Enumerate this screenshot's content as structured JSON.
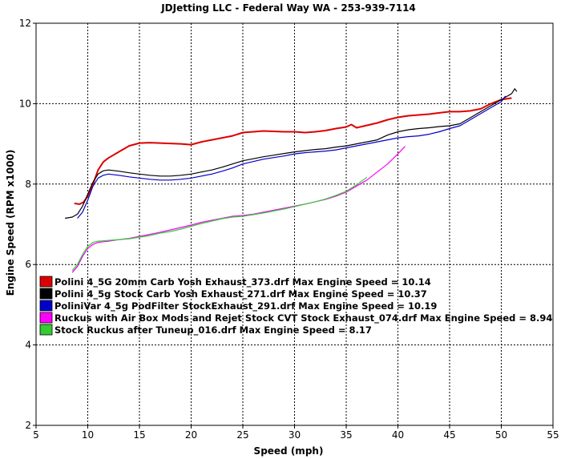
{
  "chart_data": {
    "type": "line",
    "title": "JDJetting LLC  - Federal Way WA - 253-939-7114",
    "xlabel": "Speed (mph)",
    "ylabel": "Engine Speed (RPM x1000)",
    "xlim": [
      5,
      55
    ],
    "ylim": [
      2,
      12
    ],
    "x_ticks": [
      "5",
      "10",
      "15",
      "20",
      "25",
      "30",
      "35",
      "40",
      "45",
      "50",
      "55"
    ],
    "y_ticks": [
      "2",
      "4",
      "6",
      "8",
      "10",
      "12"
    ],
    "grid": true,
    "legend_position": "lower-left",
    "series": [
      {
        "name": "Polini 4_5G 20mm Carb Yosh Exhaust_373.drf Max Engine Speed = 10.14",
        "color": "#dd0000",
        "x": [
          8.7,
          9.2,
          9.6,
          10.0,
          10.5,
          11.0,
          11.5,
          12.0,
          13.0,
          14.0,
          15.0,
          16.0,
          17.0,
          18.0,
          19.0,
          20.0,
          21.0,
          22.0,
          23.0,
          24.0,
          25.0,
          26.0,
          27.0,
          28.0,
          29.0,
          30.0,
          31.0,
          32.0,
          33.0,
          34.0,
          35.0,
          35.5,
          36.0,
          37.0,
          38.0,
          39.0,
          40.0,
          41.0,
          42.0,
          43.0,
          44.0,
          45.0,
          46.0,
          47.0,
          48.0,
          49.0,
          50.0,
          51.0
        ],
        "y": [
          7.52,
          7.5,
          7.55,
          7.7,
          8.0,
          8.35,
          8.55,
          8.65,
          8.8,
          8.95,
          9.02,
          9.03,
          9.02,
          9.01,
          9.0,
          8.98,
          9.05,
          9.1,
          9.15,
          9.2,
          9.28,
          9.3,
          9.32,
          9.31,
          9.3,
          9.3,
          9.28,
          9.3,
          9.33,
          9.38,
          9.42,
          9.48,
          9.4,
          9.46,
          9.52,
          9.6,
          9.66,
          9.7,
          9.72,
          9.74,
          9.77,
          9.8,
          9.8,
          9.82,
          9.87,
          10.0,
          10.1,
          10.14
        ]
      },
      {
        "name": "Polini 4_5g Stock Carb Yosh Exhaust_271.drf Max Engine Speed = 10.37",
        "color": "#000000",
        "x": [
          7.8,
          8.5,
          9.0,
          9.5,
          10.0,
          10.5,
          11.0,
          11.5,
          12.0,
          13.0,
          14.0,
          15.0,
          16.0,
          17.0,
          18.0,
          19.0,
          20.0,
          21.0,
          22.0,
          23.0,
          24.0,
          25.0,
          26.0,
          27.0,
          28.0,
          29.0,
          30.0,
          31.0,
          32.0,
          33.0,
          34.0,
          35.0,
          36.0,
          37.0,
          38.0,
          39.0,
          40.0,
          41.0,
          42.0,
          43.0,
          44.0,
          45.0,
          46.0,
          47.0,
          48.0,
          49.0,
          50.0,
          51.0,
          51.3,
          51.5
        ],
        "y": [
          7.15,
          7.18,
          7.25,
          7.45,
          7.75,
          8.05,
          8.25,
          8.33,
          8.35,
          8.32,
          8.28,
          8.25,
          8.22,
          8.2,
          8.2,
          8.22,
          8.25,
          8.3,
          8.35,
          8.42,
          8.5,
          8.58,
          8.63,
          8.68,
          8.72,
          8.76,
          8.8,
          8.83,
          8.86,
          8.88,
          8.92,
          8.95,
          9.0,
          9.05,
          9.1,
          9.22,
          9.3,
          9.35,
          9.38,
          9.4,
          9.43,
          9.45,
          9.5,
          9.65,
          9.8,
          9.95,
          10.1,
          10.25,
          10.37,
          10.3
        ]
      },
      {
        "name": "PoliniVar 4_5g PodFilter StockExhaust_291.drf Max Engine Speed = 10.19",
        "color": "#0000cc",
        "x": [
          9.0,
          9.5,
          10.0,
          10.5,
          11.0,
          11.5,
          12.0,
          13.0,
          14.0,
          15.0,
          16.0,
          17.0,
          18.0,
          19.0,
          20.0,
          21.0,
          22.0,
          23.0,
          24.0,
          25.0,
          26.0,
          27.0,
          28.0,
          29.0,
          30.0,
          31.0,
          32.0,
          33.0,
          34.0,
          35.0,
          36.0,
          37.0,
          38.0,
          39.0,
          40.0,
          41.0,
          42.0,
          43.0,
          44.0,
          45.0,
          46.0,
          47.0,
          48.0,
          49.0,
          50.0,
          50.4
        ],
        "y": [
          7.15,
          7.3,
          7.6,
          7.95,
          8.15,
          8.22,
          8.25,
          8.22,
          8.18,
          8.15,
          8.12,
          8.1,
          8.1,
          8.12,
          8.15,
          8.2,
          8.25,
          8.32,
          8.4,
          8.5,
          8.56,
          8.62,
          8.66,
          8.7,
          8.75,
          8.78,
          8.8,
          8.82,
          8.85,
          8.9,
          8.95,
          9.0,
          9.05,
          9.1,
          9.15,
          9.18,
          9.2,
          9.24,
          9.3,
          9.38,
          9.45,
          9.6,
          9.75,
          9.9,
          10.05,
          10.19
        ]
      },
      {
        "name": "Ruckus with Air Box Mods and Rejet Stock CVT Stock Exhaust_074.drf Max Engine Speed = 8.94",
        "color": "#ff00ff",
        "x": [
          8.5,
          9.0,
          9.5,
          10.0,
          10.5,
          11.0,
          12.0,
          13.0,
          14.0,
          15.0,
          16.0,
          17.0,
          18.0,
          19.0,
          20.0,
          21.0,
          22.0,
          23.0,
          24.0,
          25.0,
          26.0,
          27.0,
          28.0,
          29.0,
          30.0,
          31.0,
          32.0,
          33.0,
          34.0,
          35.0,
          36.0,
          37.0,
          38.0,
          39.0,
          40.0,
          40.7
        ],
        "y": [
          5.8,
          5.95,
          6.2,
          6.4,
          6.5,
          6.55,
          6.58,
          6.62,
          6.65,
          6.7,
          6.75,
          6.8,
          6.86,
          6.92,
          6.98,
          7.05,
          7.1,
          7.15,
          7.2,
          7.22,
          7.25,
          7.3,
          7.35,
          7.4,
          7.45,
          7.5,
          7.56,
          7.62,
          7.7,
          7.8,
          7.95,
          8.1,
          8.3,
          8.5,
          8.75,
          8.94
        ]
      },
      {
        "name": "Stock Ruckus after Tuneup_016.drf Max Engine Speed = 8.17",
        "color": "#33cc33",
        "x": [
          8.5,
          9.0,
          9.5,
          10.0,
          10.5,
          11.0,
          12.0,
          13.0,
          14.0,
          15.0,
          16.0,
          17.0,
          18.0,
          19.0,
          20.0,
          21.0,
          22.0,
          23.0,
          24.0,
          25.0,
          26.0,
          27.0,
          28.0,
          29.0,
          30.0,
          31.0,
          32.0,
          33.0,
          34.0,
          35.0,
          36.0,
          37.0
        ],
        "y": [
          5.85,
          6.0,
          6.25,
          6.45,
          6.55,
          6.58,
          6.6,
          6.62,
          6.64,
          6.68,
          6.72,
          6.78,
          6.82,
          6.88,
          6.95,
          7.02,
          7.08,
          7.14,
          7.18,
          7.2,
          7.24,
          7.28,
          7.33,
          7.38,
          7.44,
          7.5,
          7.56,
          7.63,
          7.72,
          7.82,
          7.98,
          8.17
        ]
      }
    ]
  }
}
